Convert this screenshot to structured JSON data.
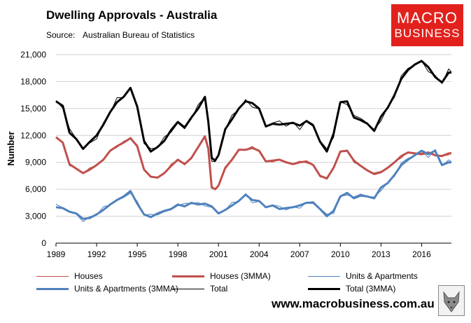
{
  "header": {
    "title": "Dwelling Approvals - Australia",
    "source_label": "Source:",
    "source_text": "Australian Bureau of Statistics"
  },
  "logo": {
    "line1": "MACRO",
    "line2": "BUSINESS"
  },
  "footer": {
    "url": "www.macrobusiness.com.au",
    "emblem_icon": "wolf-icon"
  },
  "colors": {
    "houses": "#c0504d",
    "units": "#4f81bd",
    "total": "#000000"
  },
  "chart_data": {
    "type": "line",
    "title": "Dwelling Approvals - Australia",
    "xlabel": "",
    "ylabel": "Number",
    "xlim": [
      1989,
      2018.2
    ],
    "ylim": [
      0,
      21000
    ],
    "x_ticks": [
      "1989",
      "1992",
      "1995",
      "1998",
      "2001",
      "2004",
      "2007",
      "2010",
      "2013",
      "2016"
    ],
    "y_ticks": [
      "0",
      "3,000",
      "6,000",
      "9,000",
      "12,000",
      "15,000",
      "18,000",
      "21,000"
    ],
    "grid": true,
    "legend_position": "bottom",
    "series_keys": {
      "houses": {
        "x": [
          1989,
          1989.5,
          1990,
          1990.5,
          1991,
          1991.5,
          1992,
          1992.5,
          1993,
          1993.5,
          1994,
          1994.5,
          1995,
          1995.5,
          1996,
          1996.5,
          1997,
          1997.5,
          1998,
          1998.5,
          1999,
          1999.5,
          2000,
          2000.25,
          2000.5,
          2000.75,
          2001,
          2001.5,
          2002,
          2002.5,
          2003,
          2003.5,
          2004,
          2004.5,
          2005,
          2005.5,
          2006,
          2006.5,
          2007,
          2007.5,
          2008,
          2008.5,
          2009,
          2009.5,
          2010,
          2010.5,
          2011,
          2011.5,
          2012,
          2012.5,
          2013,
          2013.5,
          2014,
          2014.5,
          2015,
          2015.5,
          2016,
          2016.5,
          2017,
          2017.5,
          2018,
          2018.2
        ],
        "y": [
          11800,
          11200,
          8800,
          8300,
          7800,
          8200,
          8700,
          9300,
          10300,
          10800,
          11200,
          11700,
          10800,
          8200,
          7400,
          7300,
          7800,
          8600,
          9300,
          8800,
          9500,
          10700,
          11900,
          10500,
          6200,
          6000,
          6400,
          8400,
          9300,
          10400,
          10400,
          10600,
          10300,
          9100,
          9200,
          9300,
          9000,
          8800,
          9000,
          9100,
          8700,
          7500,
          7200,
          8400,
          10200,
          10300,
          9200,
          8600,
          8100,
          7700,
          7900,
          8400,
          9000,
          9700,
          10100,
          10000,
          9900,
          10100,
          9800,
          9700,
          10000,
          10000
        ]
      },
      "units": {
        "x": [
          1989,
          1989.5,
          1990,
          1990.5,
          1991,
          1991.5,
          1992,
          1992.5,
          1993,
          1993.5,
          1994,
          1994.5,
          1995,
          1995.5,
          1996,
          1996.5,
          1997,
          1997.5,
          1998,
          1998.5,
          1999,
          1999.5,
          2000,
          2000.5,
          2001,
          2001.5,
          2002,
          2002.5,
          2003,
          2003.5,
          2004,
          2004.5,
          2005,
          2005.5,
          2006,
          2006.5,
          2007,
          2007.5,
          2008,
          2008.5,
          2009,
          2009.5,
          2010,
          2010.5,
          2011,
          2011.5,
          2012,
          2012.5,
          2013,
          2013.5,
          2014,
          2014.5,
          2015,
          2015.5,
          2016,
          2016.5,
          2017,
          2017.5,
          2018,
          2018.2
        ],
        "y": [
          4000,
          3900,
          3500,
          3300,
          2700,
          2800,
          3200,
          3700,
          4300,
          4800,
          5200,
          5800,
          4400,
          3200,
          2900,
          3300,
          3600,
          3800,
          4300,
          4100,
          4500,
          4300,
          4400,
          4100,
          3300,
          3700,
          4200,
          4700,
          5400,
          4800,
          4700,
          4000,
          4200,
          3800,
          3900,
          4000,
          4200,
          4500,
          4500,
          3800,
          3000,
          3600,
          5200,
          5600,
          5000,
          5300,
          5200,
          5000,
          6200,
          6700,
          7600,
          8700,
          9300,
          9800,
          10300,
          9900,
          10300,
          8700,
          9000,
          9000
        ]
      },
      "total": {
        "x": [
          1989,
          1989.5,
          1990,
          1990.5,
          1991,
          1991.5,
          1992,
          1992.5,
          1993,
          1993.5,
          1994,
          1994.5,
          1995,
          1995.5,
          1996,
          1996.5,
          1997,
          1997.5,
          1998,
          1998.5,
          1999,
          1999.5,
          2000,
          2000.25,
          2000.5,
          2000.75,
          2001,
          2001.5,
          2002,
          2002.5,
          2003,
          2003.5,
          2004,
          2004.5,
          2005,
          2005.5,
          2006,
          2006.5,
          2007,
          2007.5,
          2008,
          2008.5,
          2009,
          2009.5,
          2010,
          2010.5,
          2011,
          2011.5,
          2012,
          2012.5,
          2013,
          2013.5,
          2014,
          2014.5,
          2015,
          2015.5,
          2016,
          2016.5,
          2017,
          2017.5,
          2018,
          2018.2
        ],
        "y": [
          15800,
          15300,
          12300,
          11600,
          10500,
          11300,
          12000,
          13200,
          14600,
          15700,
          16300,
          17300,
          15200,
          11400,
          10200,
          10700,
          11400,
          12600,
          13500,
          12900,
          14000,
          15000,
          16300,
          13500,
          9500,
          9200,
          9800,
          12700,
          13800,
          15000,
          15800,
          15600,
          15000,
          13000,
          13300,
          13200,
          13300,
          13400,
          13100,
          13600,
          13100,
          11300,
          10200,
          12200,
          15700,
          15800,
          14000,
          13700,
          13300,
          12500,
          14100,
          15100,
          16500,
          18300,
          19300,
          19900,
          20300,
          19600,
          18500,
          17900,
          19000,
          19000
        ]
      }
    },
    "series": [
      {
        "name": "Houses",
        "key": "houses",
        "style": "thin"
      },
      {
        "name": "Houses (3MMA)",
        "key": "houses",
        "style": "thick"
      },
      {
        "name": "Units & Apartments",
        "key": "units",
        "style": "thin"
      },
      {
        "name": "Units & Apartments (3MMA)",
        "key": "units",
        "style": "thick"
      },
      {
        "name": "Total",
        "key": "total",
        "style": "thin"
      },
      {
        "name": "Total (3MMA)",
        "key": "total",
        "style": "thick"
      }
    ]
  }
}
